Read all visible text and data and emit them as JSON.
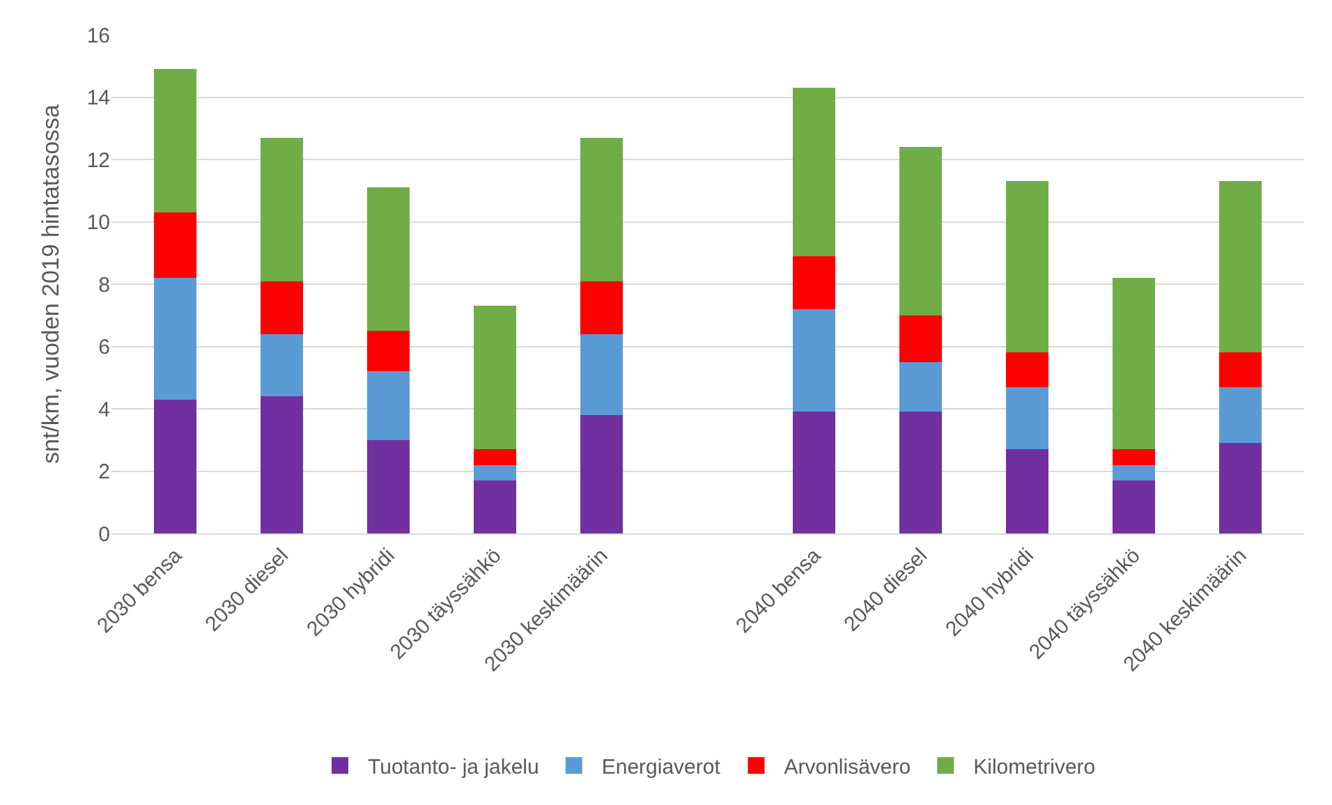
{
  "chart_data": {
    "type": "bar",
    "stacked": true,
    "ylabel": "snt/km, vuoden 2019 hintatasossa",
    "categories": [
      "2030 bensa",
      "2030 diesel",
      "2030 hybridi",
      "2030 täyssähkö",
      "2030 keskimäärin",
      null,
      "2040 bensa",
      "2040 diesel",
      "2040 hybridi",
      "2040 täyssähkö",
      "2040 keskimäärin"
    ],
    "series": [
      {
        "name": "Tuotanto- ja jakelu",
        "color": "#7030a0",
        "values": [
          4.3,
          4.4,
          3.0,
          1.7,
          3.8,
          null,
          3.9,
          3.9,
          2.7,
          1.7,
          2.9
        ]
      },
      {
        "name": "Energiaverot",
        "color": "#5b9bd5",
        "values": [
          3.9,
          2.0,
          2.2,
          0.5,
          2.6,
          null,
          3.3,
          1.6,
          2.0,
          0.5,
          1.8
        ]
      },
      {
        "name": "Arvonlisävero",
        "color": "#ff0000",
        "values": [
          2.1,
          1.7,
          1.3,
          0.5,
          1.7,
          null,
          1.7,
          1.5,
          1.1,
          0.5,
          1.1
        ]
      },
      {
        "name": "Kilometrivero",
        "color": "#70ad47",
        "values": [
          4.6,
          4.6,
          4.6,
          4.6,
          4.6,
          null,
          5.4,
          5.4,
          5.5,
          5.5,
          5.5
        ]
      }
    ],
    "ylim": [
      0,
      16
    ],
    "yticks": [
      0,
      2,
      4,
      6,
      8,
      10,
      12,
      14,
      16
    ],
    "grid": "y",
    "legend": "bottom"
  }
}
